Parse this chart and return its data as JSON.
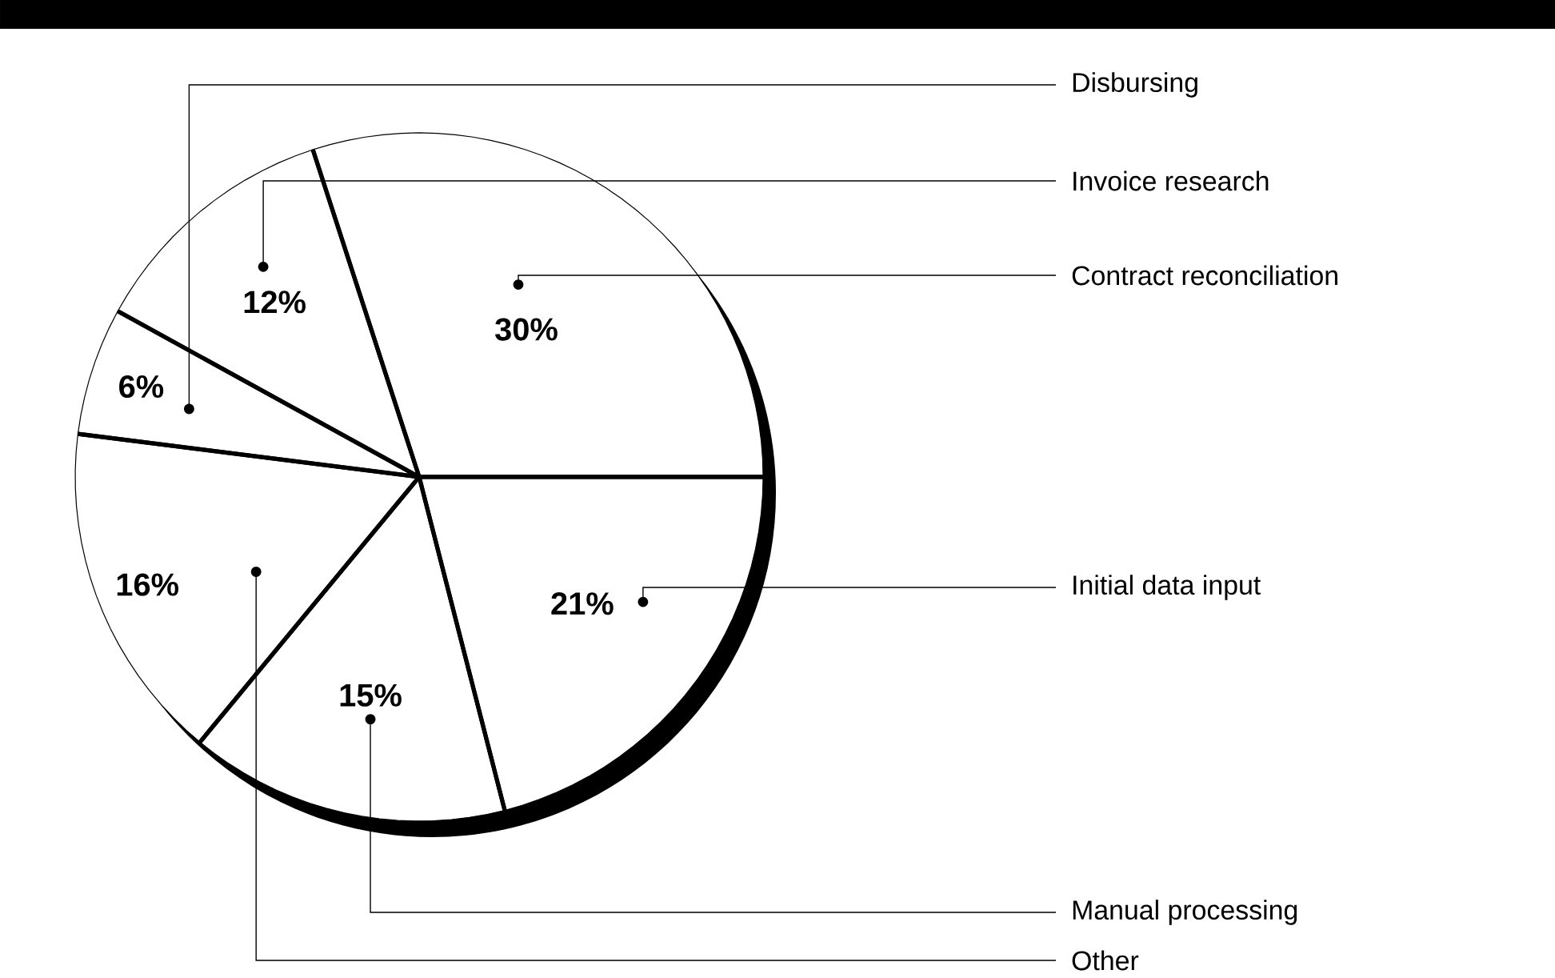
{
  "chart_data": {
    "type": "pie",
    "categories": [
      "Contract reconciliation",
      "Invoice research",
      "Disbursing",
      "Other",
      "Manual processing",
      "Initial data input"
    ],
    "values": [
      30,
      12,
      6,
      16,
      15,
      21
    ],
    "colors": [
      "#ffffff",
      "#ffffff",
      "#ffffff",
      "#ffffff",
      "#ffffff",
      "#ffffff"
    ],
    "value_labels": [
      "30%",
      "12%",
      "6%",
      "16%",
      "15%",
      "21%"
    ]
  }
}
